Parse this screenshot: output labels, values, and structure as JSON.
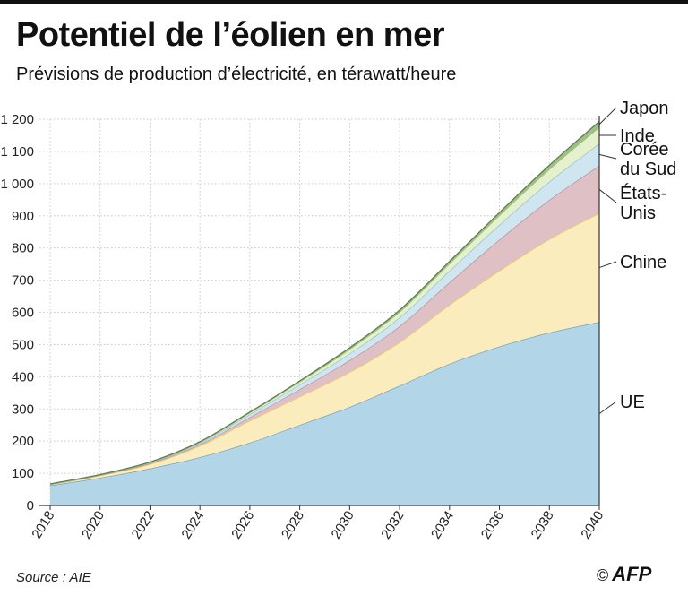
{
  "title": "Potentiel de l’éolien en mer",
  "subtitle": "Prévisions de production d’électricité, en térawatt/heure",
  "source": "Source : AIE",
  "credit": {
    "symbol": "©",
    "agency": "AFP"
  },
  "chart_data": {
    "type": "area",
    "stacked": true,
    "title": "Potentiel de l’éolien en mer",
    "subtitle": "Prévisions de production d’électricité, en térawatt/heure",
    "xlabel": "",
    "ylabel": "",
    "x": [
      2018,
      2020,
      2022,
      2024,
      2026,
      2028,
      2030,
      2032,
      2034,
      2036,
      2038,
      2040
    ],
    "xticks": [
      "2018",
      "2020",
      "2022",
      "2024",
      "2026",
      "2028",
      "2030",
      "2032",
      "2034",
      "2036",
      "2038",
      "2040"
    ],
    "ylim": [
      0,
      1200
    ],
    "yticks": [
      0,
      100,
      200,
      300,
      400,
      500,
      600,
      700,
      800,
      900,
      1000,
      1100,
      1200
    ],
    "ytick_labels": [
      "0",
      "100",
      "200",
      "300",
      "400",
      "500",
      "600",
      "700",
      "800",
      "900",
      "1 000",
      "1 100",
      "1 200"
    ],
    "grid": true,
    "series": [
      {
        "name": "UE",
        "label_lines": [
          "UE"
        ],
        "color": "#b3d5e8",
        "edge": "#6a9cbd",
        "values": [
          62,
          86,
          115,
          150,
          195,
          250,
          306,
          372,
          440,
          494,
          537,
          570
        ]
      },
      {
        "name": "Chine",
        "label_lines": [
          "Chine"
        ],
        "color": "#fbecbd",
        "edge": "#f0cc55",
        "values": [
          3,
          7,
          13,
          35,
          68,
          88,
          108,
          135,
          183,
          235,
          290,
          338
        ]
      },
      {
        "name": "États-Unis",
        "label_lines": [
          "États-",
          "Unis"
        ],
        "color": "#dfc0c4",
        "edge": "#b78a92",
        "values": [
          0,
          1,
          3,
          5,
          11,
          23,
          37,
          50,
          70,
          97,
          122,
          148
        ]
      },
      {
        "name": "Corée du Sud",
        "label_lines": [
          "Corée",
          "du Sud"
        ],
        "color": "#cfe5f0",
        "edge": "#8cbdd3",
        "values": [
          1,
          1,
          2,
          4,
          9,
          15,
          21,
          27,
          36,
          46,
          57,
          69
        ]
      },
      {
        "name": "Inde",
        "label_lines": [
          "Inde"
        ],
        "color": "#e5f1cc",
        "edge": "#a8c885",
        "values": [
          0,
          0,
          1,
          2,
          5,
          8,
          13,
          17,
          22,
          29,
          38,
          50
        ]
      },
      {
        "name": "Japon",
        "label_lines": [
          "Japon"
        ],
        "color": "#a0bf86",
        "edge": "#5f7e4c",
        "values": [
          1,
          1,
          1,
          2,
          2,
          3,
          5,
          6,
          7,
          9,
          13,
          18
        ]
      }
    ]
  }
}
